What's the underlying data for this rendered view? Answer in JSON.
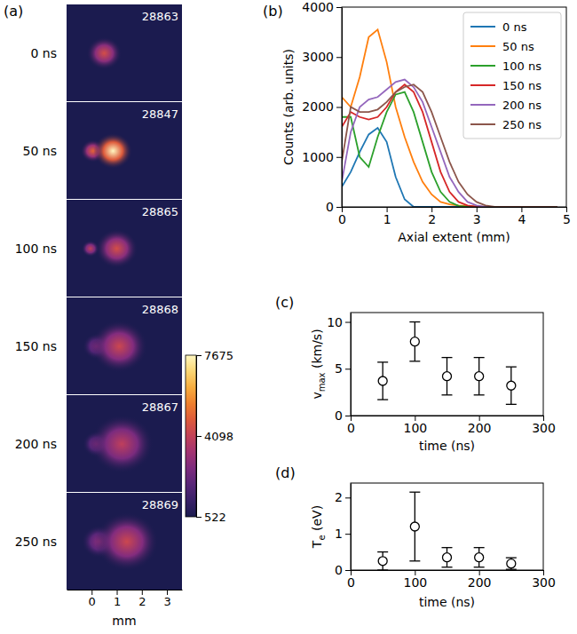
{
  "chart_data": [
    {
      "type": "image_sequence",
      "label": "(a)",
      "xlabel": "mm",
      "xlim": [
        -1,
        3.6
      ],
      "xticks": [
        0,
        1,
        2,
        3
      ],
      "frames": [
        {
          "time": "0 ns",
          "shot": "28863",
          "blobs": [
            {
              "x": 0.5,
              "halfwidth": 0.5,
              "peak": 4500
            }
          ]
        },
        {
          "time": "50 ns",
          "shot": "28847",
          "blobs": [
            {
              "x": 0.05,
              "halfwidth": 0.35,
              "peak": 5000
            },
            {
              "x": 0.85,
              "halfwidth": 0.55,
              "peak": 7675
            }
          ]
        },
        {
          "time": "100 ns",
          "shot": "28865",
          "blobs": [
            {
              "x": -0.05,
              "halfwidth": 0.25,
              "peak": 4000
            },
            {
              "x": 1.0,
              "halfwidth": 0.6,
              "peak": 4500
            }
          ]
        },
        {
          "time": "150 ns",
          "shot": "28868",
          "blobs": [
            {
              "x": 0.2,
              "halfwidth": 0.4,
              "peak": 2800
            },
            {
              "x": 1.1,
              "halfwidth": 0.8,
              "peak": 4300
            }
          ]
        },
        {
          "time": "200 ns",
          "shot": "28867",
          "blobs": [
            {
              "x": 0.2,
              "halfwidth": 0.4,
              "peak": 2800
            },
            {
              "x": 1.2,
              "halfwidth": 0.9,
              "peak": 4000
            }
          ]
        },
        {
          "time": "250 ns",
          "shot": "28869",
          "blobs": [
            {
              "x": 0.3,
              "halfwidth": 0.5,
              "peak": 3000
            },
            {
              "x": 1.4,
              "halfwidth": 0.9,
              "peak": 4300
            }
          ]
        }
      ],
      "colorbar": {
        "range": [
          522,
          7675
        ],
        "ticks": [
          522,
          4098,
          7675
        ]
      }
    },
    {
      "type": "line",
      "label": "(b)",
      "xlabel": "Axial extent (mm)",
      "ylabel": "Counts (arb. units)",
      "xlim": [
        0,
        5
      ],
      "xticks": [
        0,
        1,
        2,
        3,
        4,
        5
      ],
      "ylim": [
        0,
        4000
      ],
      "yticks": [
        0,
        1000,
        2000,
        3000,
        4000
      ],
      "legend": "upper right",
      "x": [
        0,
        0.2,
        0.4,
        0.6,
        0.8,
        1.0,
        1.2,
        1.4,
        1.6,
        1.8,
        2.0,
        2.2,
        2.4,
        2.6,
        2.8,
        3.0,
        3.2,
        3.4,
        3.6,
        3.8,
        4.0,
        4.2,
        4.4,
        4.6,
        4.8
      ],
      "series": [
        {
          "name": "0 ns",
          "color": "#1f77b4",
          "values": [
            400,
            700,
            1100,
            1450,
            1580,
            1300,
            600,
            150,
            0,
            0,
            0,
            0,
            0,
            0,
            0,
            0,
            0,
            0,
            0,
            0,
            0,
            0,
            0,
            0,
            0
          ]
        },
        {
          "name": "50 ns",
          "color": "#ff7f0e",
          "values": [
            2200,
            2000,
            2600,
            3400,
            3550,
            2900,
            2000,
            1400,
            900,
            500,
            250,
            100,
            50,
            30,
            20,
            10,
            0,
            0,
            0,
            0,
            0,
            0,
            0,
            0,
            0
          ]
        },
        {
          "name": "100 ns",
          "color": "#2ca02c",
          "values": [
            1800,
            1800,
            1000,
            800,
            1400,
            1900,
            2250,
            2300,
            1900,
            1300,
            700,
            300,
            100,
            20,
            0,
            0,
            0,
            0,
            0,
            0,
            0,
            0,
            0,
            0,
            0
          ]
        },
        {
          "name": "150 ns",
          "color": "#d62728",
          "values": [
            1600,
            1900,
            1800,
            1750,
            1800,
            2000,
            2300,
            2450,
            2300,
            1900,
            1300,
            700,
            300,
            100,
            30,
            0,
            0,
            0,
            0,
            0,
            0,
            0,
            0,
            0,
            0
          ]
        },
        {
          "name": "200 ns",
          "color": "#9467bd",
          "values": [
            500,
            1500,
            2000,
            2150,
            2200,
            2350,
            2500,
            2550,
            2400,
            2100,
            1600,
            1100,
            600,
            300,
            100,
            30,
            0,
            0,
            0,
            0,
            0,
            0,
            0,
            0,
            0
          ]
        },
        {
          "name": "250 ns",
          "color": "#8c564b",
          "values": [
            900,
            2000,
            1900,
            1900,
            1950,
            2100,
            2300,
            2400,
            2450,
            2300,
            1900,
            1400,
            900,
            500,
            250,
            100,
            30,
            0,
            0,
            0,
            0,
            0,
            0,
            0,
            0
          ]
        }
      ]
    },
    {
      "type": "scatter",
      "label": "(c)",
      "xlabel": "time (ns)",
      "ylabel": {
        "text": "v",
        "subscript": "max",
        "unit": " (km/s)"
      },
      "xlim": [
        0,
        300
      ],
      "xticks": [
        0,
        100,
        200,
        300
      ],
      "ylim": [
        0,
        11
      ],
      "yticks": [
        0,
        5,
        10
      ],
      "marker": "circle",
      "color": "#000000",
      "x": [
        50,
        100,
        150,
        200,
        250
      ],
      "values": [
        3.7,
        7.9,
        4.2,
        4.2,
        3.2
      ],
      "errors": [
        2,
        2.1,
        2,
        2,
        2
      ]
    },
    {
      "type": "scatter",
      "label": "(d)",
      "xlabel": "time (ns)",
      "ylabel": {
        "text": "T",
        "subscript": "e",
        "unit": " (eV)"
      },
      "xlim": [
        0,
        300
      ],
      "xticks": [
        0,
        100,
        200,
        300
      ],
      "ylim": [
        0,
        2.4
      ],
      "yticks": [
        0,
        1,
        2
      ],
      "marker": "circle",
      "color": "#000000",
      "x": [
        50,
        100,
        150,
        200,
        250
      ],
      "values": [
        0.25,
        1.2,
        0.35,
        0.35,
        0.18
      ],
      "errors": [
        0.25,
        0.95,
        0.27,
        0.27,
        0.16
      ]
    }
  ]
}
